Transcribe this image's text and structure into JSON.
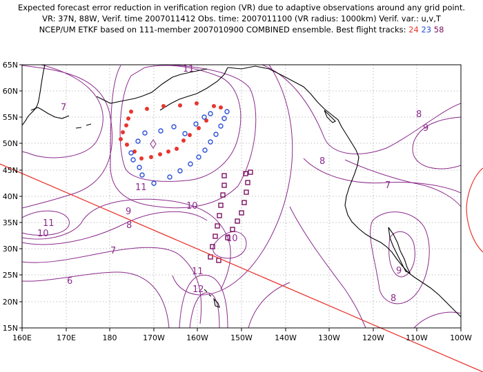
{
  "header": {
    "line1": "Expected forecast error reduction in verification region (VR) due to adaptive observations around any grid point.",
    "line2": "VR: 37N, 88W, Verif. time 2007011412  Obs. time: 2007011100 (VR radius: 1000km)  Verif. var.: u,v,T",
    "line3_prefix": "NCEP/UM ETKF based on 111-member 2007010900 COMBINED ensemble.  Best flight tracks:",
    "track24": "24",
    "track23": "23",
    "track58": "58"
  },
  "axes": {
    "lat_ticks": [
      "65N",
      "60N",
      "55N",
      "50N",
      "45N",
      "40N",
      "35N",
      "30N",
      "25N",
      "20N",
      "15N"
    ],
    "lon_ticks": [
      "160E",
      "170E",
      "180",
      "170W",
      "160W",
      "150W",
      "140W",
      "130W",
      "120W",
      "110W",
      "100W"
    ]
  },
  "contour_labels": [
    "11",
    "7",
    "8",
    "9",
    "8",
    "9",
    "10",
    "11",
    "11",
    "10",
    "7",
    "7",
    "8",
    "6",
    "10",
    "11",
    "12",
    "9",
    "8",
    "9",
    "10"
  ],
  "colors": {
    "contour": "#8a2a8a",
    "track24": "#e8362f",
    "track23": "#2b4fd8",
    "track58": "#7a1060",
    "vr_circle": "#e8362f",
    "coast": "#000000"
  },
  "tracks": {
    "track24_marker": "filled-circle",
    "track23_marker": "open-hexagon",
    "track58_marker": "open-square"
  }
}
